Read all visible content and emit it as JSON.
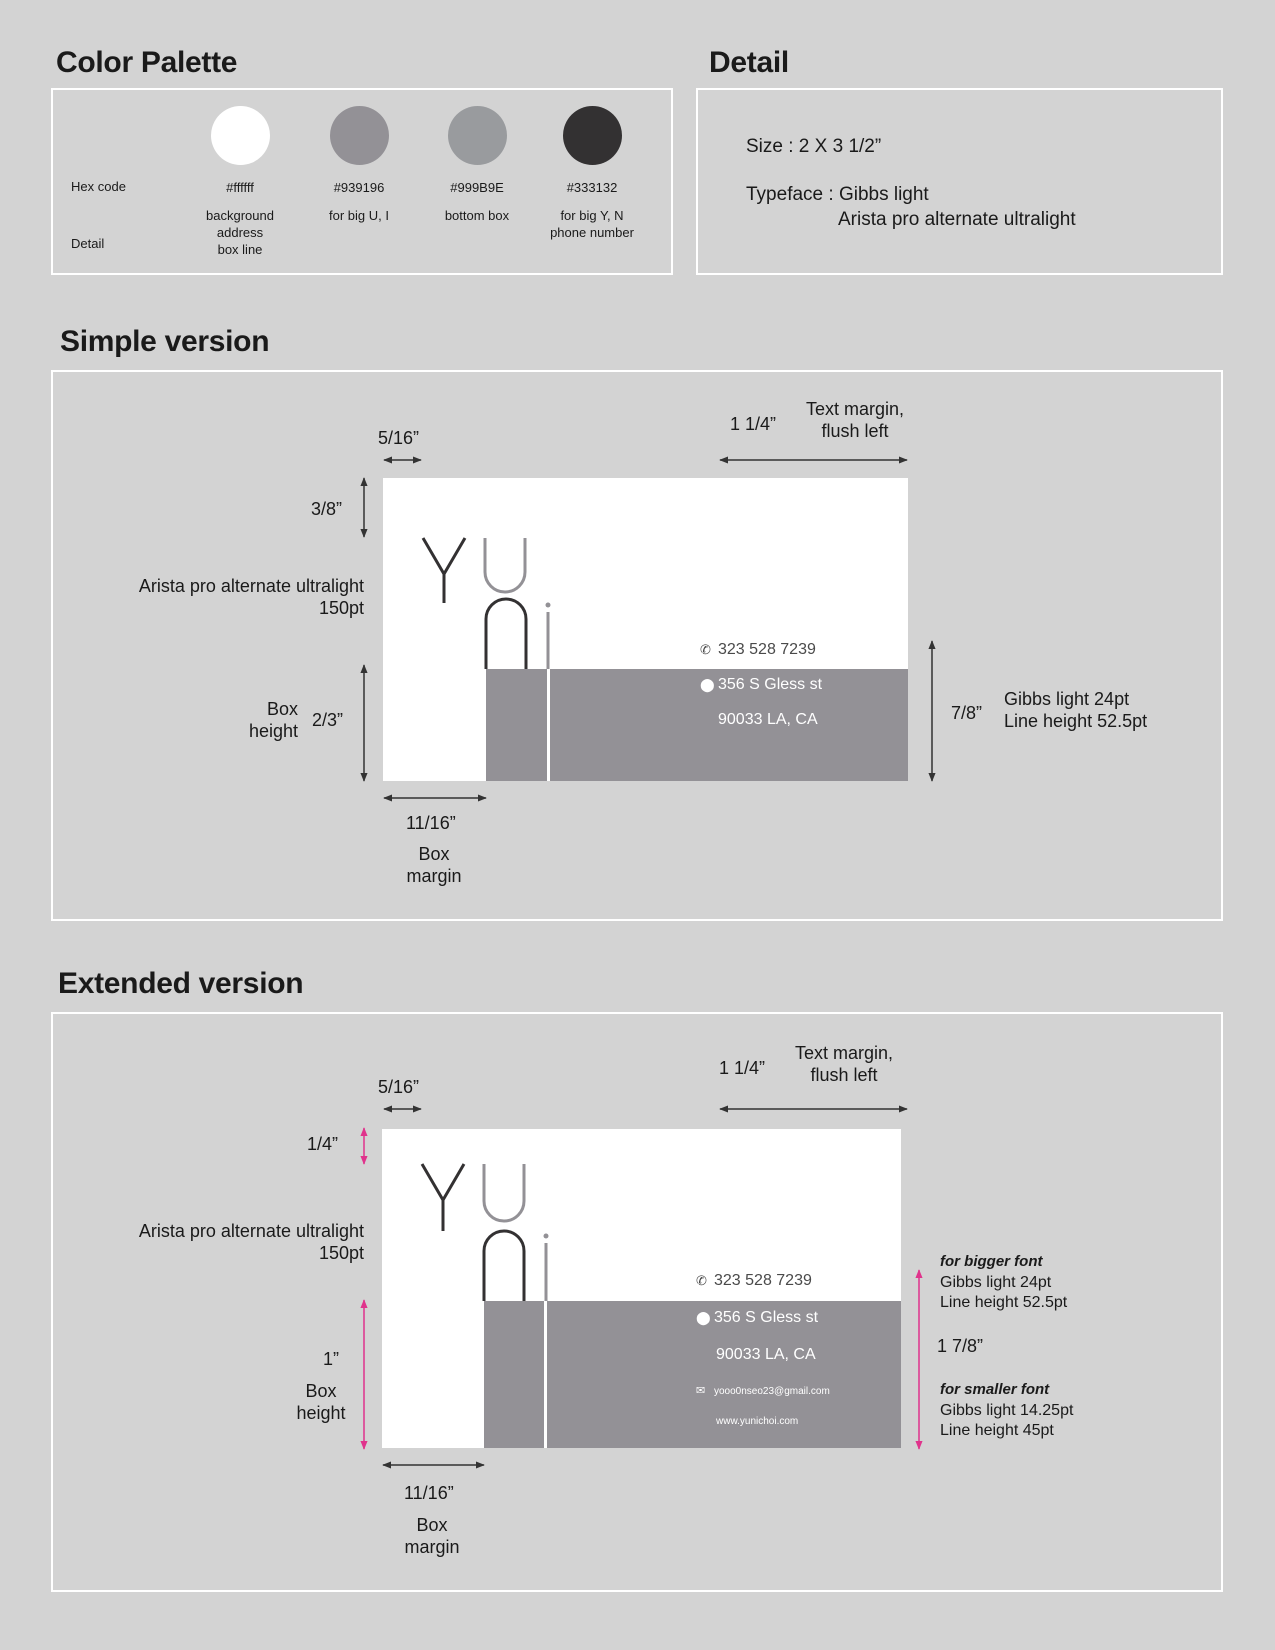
{
  "palette": {
    "title": "Color Palette",
    "row_label_hex": "Hex code",
    "row_label_detail": "Detail",
    "swatches": [
      {
        "color": "#ffffff",
        "hex": "#ffffff",
        "detail": "background\naddress\nbox line"
      },
      {
        "color": "#939196",
        "hex": "#939196",
        "detail": "for big U, I"
      },
      {
        "color": "#999b9e",
        "hex": "#999B9E",
        "detail": "bottom box"
      },
      {
        "color": "#333132",
        "hex": "#333132",
        "detail": "for big Y, N\nphone number"
      }
    ]
  },
  "detail": {
    "title": "Detail",
    "size": "Size : 2 X 3 1/2”",
    "typeface": "Typeface : Gibbs light",
    "typeface_2": "Arista pro alternate ultralight"
  },
  "simple": {
    "title": "Simple version",
    "dim_5_16": "5/16”",
    "dim_1_1_4": "1 1/4”",
    "text_margin": "Text margin,\nflush left",
    "dim_3_8": "3/8”",
    "font_note": "Arista pro alternate ultralight\n150pt",
    "box_height_label": "Box\nheight",
    "dim_2_3": "2/3”",
    "dim_11_16": "11/16”",
    "box_margin": "Box\nmargin",
    "dim_7_8": "7/8”",
    "text_spec": "Gibbs light 24pt\nLine height 52.5pt",
    "card": {
      "phone": "323 528 7239",
      "address1": "356 S Gless st",
      "address2": "90033 LA, CA"
    }
  },
  "extended": {
    "title": "Extended version",
    "dim_5_16": "5/16”",
    "dim_1_1_4": "1 1/4”",
    "text_margin": "Text margin,\nflush left",
    "dim_1_4": "1/4”",
    "font_note": "Arista pro alternate ultralight\n150pt",
    "dim_1": "1”",
    "box_height_label": "Box\nheight",
    "dim_11_16": "11/16”",
    "box_margin": "Box\nmargin",
    "bigger_title": "for bigger font",
    "bigger_spec": "Gibbs light 24pt\nLine height 52.5pt",
    "dim_1_7_8": "1 7/8”",
    "smaller_title": "for smaller font",
    "smaller_spec": "Gibbs light 14.25pt\nLine height 45pt",
    "card": {
      "phone": "323 528 7239",
      "address1": "356 S Gless st",
      "address2": "90033 LA, CA",
      "email": "yooo0nseo23@gmail.com",
      "website": "www.yunichoi.com"
    }
  },
  "colors": {
    "page_bg": "#d3d3d3",
    "frame": "#ffffff",
    "dim_arrow": "#333333",
    "dim_arrow_accent": "#e0338c"
  }
}
